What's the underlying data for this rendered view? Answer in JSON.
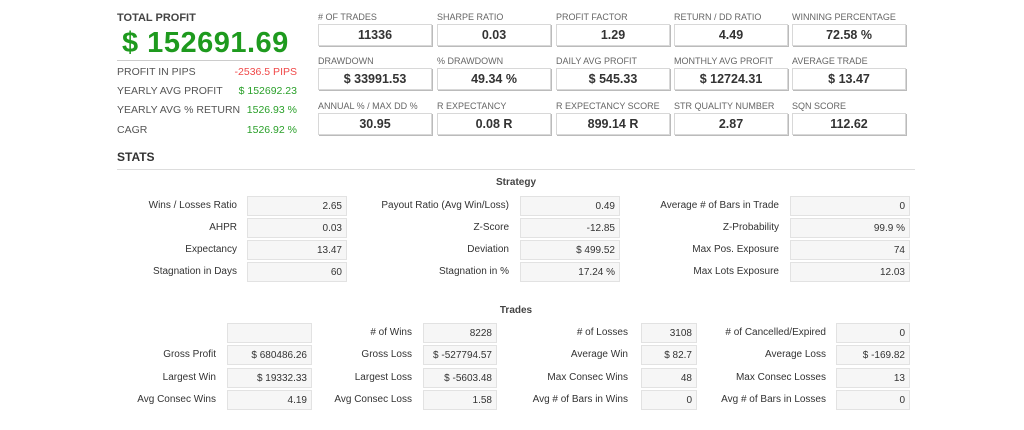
{
  "summary": {
    "total_profit_label": "TOTAL PROFIT",
    "total_profit": "$ 152691.69",
    "rows": [
      {
        "label": "PROFIT IN PIPS",
        "value": "-2536.5 PIPS",
        "color": "#f04848"
      },
      {
        "label": "YEARLY AVG PROFIT",
        "value": "$ 152692.23",
        "color": "#2aa02a"
      },
      {
        "label": "YEARLY AVG % RETURN",
        "value": "1526.93 %",
        "color": "#2aa02a"
      },
      {
        "label": "CAGR",
        "value": "1526.92 %",
        "color": "#2aa02a"
      }
    ]
  },
  "metrics": [
    [
      {
        "label": "# OF TRADES",
        "value": "11336"
      },
      {
        "label": "SHARPE RATIO",
        "value": "0.03"
      },
      {
        "label": "PROFIT FACTOR",
        "value": "1.29"
      },
      {
        "label": "RETURN / DD RATIO",
        "value": "4.49"
      },
      {
        "label": "WINNING PERCENTAGE",
        "value": "72.58 %"
      }
    ],
    [
      {
        "label": "DRAWDOWN",
        "value": "$ 33991.53"
      },
      {
        "label": "% DRAWDOWN",
        "value": "49.34 %"
      },
      {
        "label": "DAILY AVG PROFIT",
        "value": "$ 545.33"
      },
      {
        "label": "MONTHLY AVG PROFIT",
        "value": "$ 12724.31"
      },
      {
        "label": "AVERAGE TRADE",
        "value": "$ 13.47"
      }
    ],
    [
      {
        "label": "ANNUAL % / MAX DD %",
        "value": "30.95"
      },
      {
        "label": "R EXPECTANCY",
        "value": "0.08 R"
      },
      {
        "label": "R EXPECTANCY SCORE",
        "value": "899.14 R"
      },
      {
        "label": "STR QUALITY NUMBER",
        "value": "2.87"
      },
      {
        "label": "SQN SCORE",
        "value": "112.62"
      }
    ]
  ],
  "stats_title": "STATS",
  "strategy": {
    "title": "Strategy",
    "rows": [
      [
        [
          "Wins / Losses Ratio",
          "2.65"
        ],
        [
          "Payout Ratio (Avg Win/Loss)",
          "0.49"
        ],
        [
          "Average # of Bars in Trade",
          "0"
        ]
      ],
      [
        [
          "AHPR",
          "0.03"
        ],
        [
          "Z-Score",
          "-12.85"
        ],
        [
          "Z-Probability",
          "99.9 %"
        ]
      ],
      [
        [
          "Expectancy",
          "13.47"
        ],
        [
          "Deviation",
          "$ 499.52"
        ],
        [
          "Max Pos. Exposure",
          "74"
        ]
      ],
      [
        [
          "Stagnation in Days",
          "60"
        ],
        [
          "Stagnation in %",
          "17.24 %"
        ],
        [
          "Max Lots Exposure",
          "12.03"
        ]
      ]
    ]
  },
  "trades": {
    "title": "Trades",
    "rows": [
      [
        [
          "",
          ""
        ],
        [
          "# of Wins",
          "8228"
        ],
        [
          "# of Losses",
          "3108"
        ],
        [
          "# of Cancelled/Expired",
          "0"
        ]
      ],
      [
        [
          "Gross Profit",
          "$ 680486.26"
        ],
        [
          "Gross Loss",
          "$ -527794.57"
        ],
        [
          "Average Win",
          "$ 82.7"
        ],
        [
          "Average Loss",
          "$ -169.82"
        ]
      ],
      [
        [
          "Largest Win",
          "$ 19332.33"
        ],
        [
          "Largest Loss",
          "$ -5603.48"
        ],
        [
          "Max Consec Wins",
          "48"
        ],
        [
          "Max Consec Losses",
          "13"
        ]
      ],
      [
        [
          "Avg Consec Wins",
          "4.19"
        ],
        [
          "Avg Consec Loss",
          "1.58"
        ],
        [
          "Avg # of Bars in Wins",
          "0"
        ],
        [
          "Avg # of Bars in Losses",
          "0"
        ]
      ]
    ]
  }
}
